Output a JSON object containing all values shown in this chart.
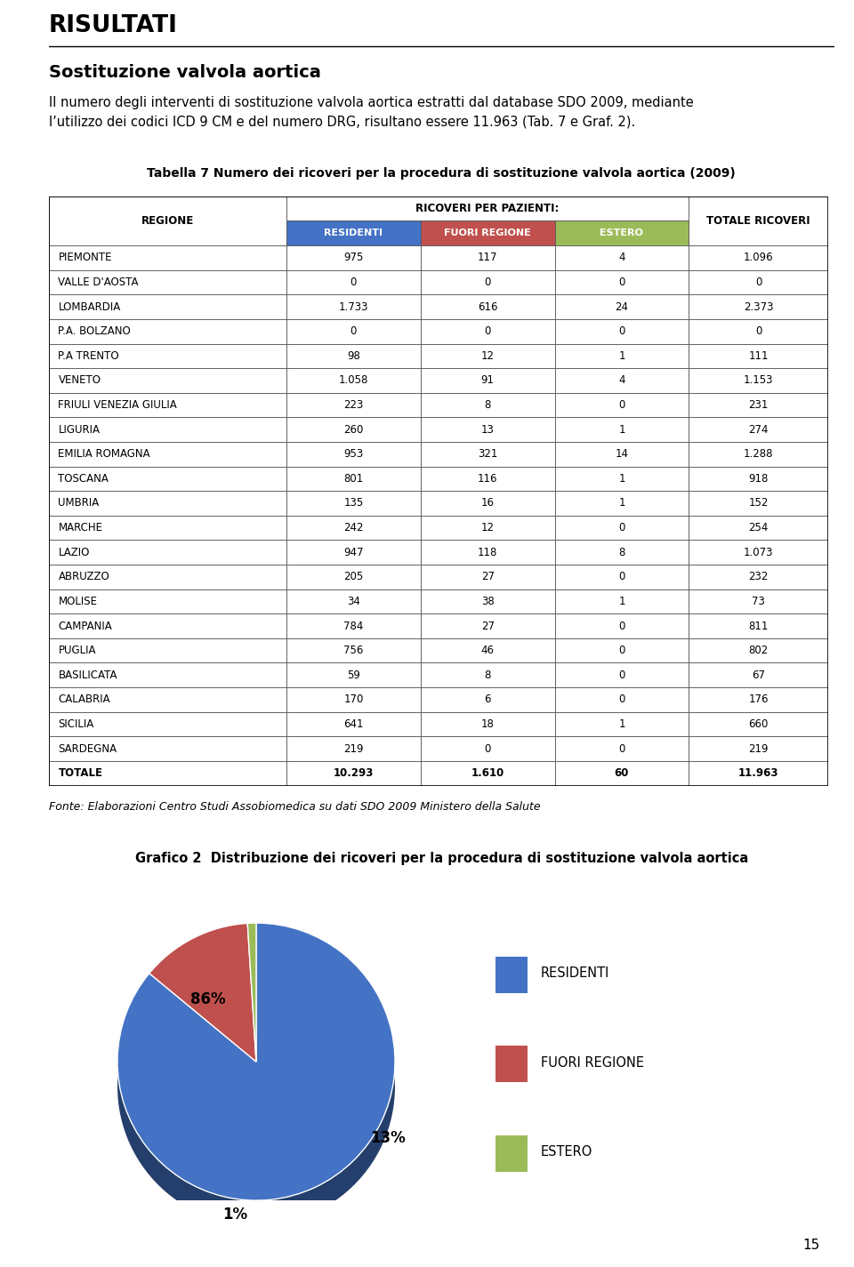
{
  "title_risultati": "RISULTATI",
  "subtitle": "Sostituzione valvola aortica",
  "body_text": "Il numero degli interventi di sostituzione valvola aortica estratti dal database SDO 2009, mediante\nl’utilizzo dei codici ICD 9 CM e del numero DRG, risultano essere 11.963 (Tab. 7 e Graf. 2).",
  "table_title_plain": "Tabella 7 ",
  "table_title_bold": "Numero dei ricoveri per la procedura di sostituzione valvola aortica (2009)",
  "col_header_group": "RICOVERI PER PAZIENTI:",
  "col_headers": [
    "REGIONE",
    "RESIDENTI",
    "FUORI REGIONE",
    "ESTERO",
    "TOTALE RICOVERI"
  ],
  "col_header_colors": [
    "#ffffff",
    "#4472C4",
    "#C0504D",
    "#9BBB59",
    "#ffffff"
  ],
  "rows": [
    [
      "PIEMONTE",
      "975",
      "117",
      "4",
      "1.096"
    ],
    [
      "VALLE D'AOSTA",
      "0",
      "0",
      "0",
      "0"
    ],
    [
      "LOMBARDIA",
      "1.733",
      "616",
      "24",
      "2.373"
    ],
    [
      "P.A. BOLZANO",
      "0",
      "0",
      "0",
      "0"
    ],
    [
      "P.A TRENTO",
      "98",
      "12",
      "1",
      "111"
    ],
    [
      "VENETO",
      "1.058",
      "91",
      "4",
      "1.153"
    ],
    [
      "FRIULI VENEZIA GIULIA",
      "223",
      "8",
      "0",
      "231"
    ],
    [
      "LIGURIA",
      "260",
      "13",
      "1",
      "274"
    ],
    [
      "EMILIA ROMAGNA",
      "953",
      "321",
      "14",
      "1.288"
    ],
    [
      "TOSCANA",
      "801",
      "116",
      "1",
      "918"
    ],
    [
      "UMBRIA",
      "135",
      "16",
      "1",
      "152"
    ],
    [
      "MARCHE",
      "242",
      "12",
      "0",
      "254"
    ],
    [
      "LAZIO",
      "947",
      "118",
      "8",
      "1.073"
    ],
    [
      "ABRUZZO",
      "205",
      "27",
      "0",
      "232"
    ],
    [
      "MOLISE",
      "34",
      "38",
      "1",
      "73"
    ],
    [
      "CAMPANIA",
      "784",
      "27",
      "0",
      "811"
    ],
    [
      "PUGLIA",
      "756",
      "46",
      "0",
      "802"
    ],
    [
      "BASILICATA",
      "59",
      "8",
      "0",
      "67"
    ],
    [
      "CALABRIA",
      "170",
      "6",
      "0",
      "176"
    ],
    [
      "SICILIA",
      "641",
      "18",
      "1",
      "660"
    ],
    [
      "SARDEGNA",
      "219",
      "0",
      "0",
      "219"
    ],
    [
      "TOTALE",
      "10.293",
      "1.610",
      "60",
      "11.963"
    ]
  ],
  "fonte_text": "Fonte: Elaborazioni Centro Studi Assobiomedica su dati SDO 2009 Ministero della Salute",
  "grafico_label_plain": "Grafico 2",
  "grafico_label_bold": "  Distribuzione dei ricoveri per la procedura di sostituzione valvola aortica",
  "pie_values": [
    86,
    13,
    1
  ],
  "pie_labels": [
    "86%",
    "13%",
    "1%"
  ],
  "pie_colors": [
    "#4472C4",
    "#C0504D",
    "#9BBB59"
  ],
  "pie_legend_labels": [
    "RESIDENTI",
    "FUORI REGIONE",
    "ESTERO"
  ],
  "page_number": "15",
  "bg_color": "#ffffff",
  "text_color": "#000000"
}
